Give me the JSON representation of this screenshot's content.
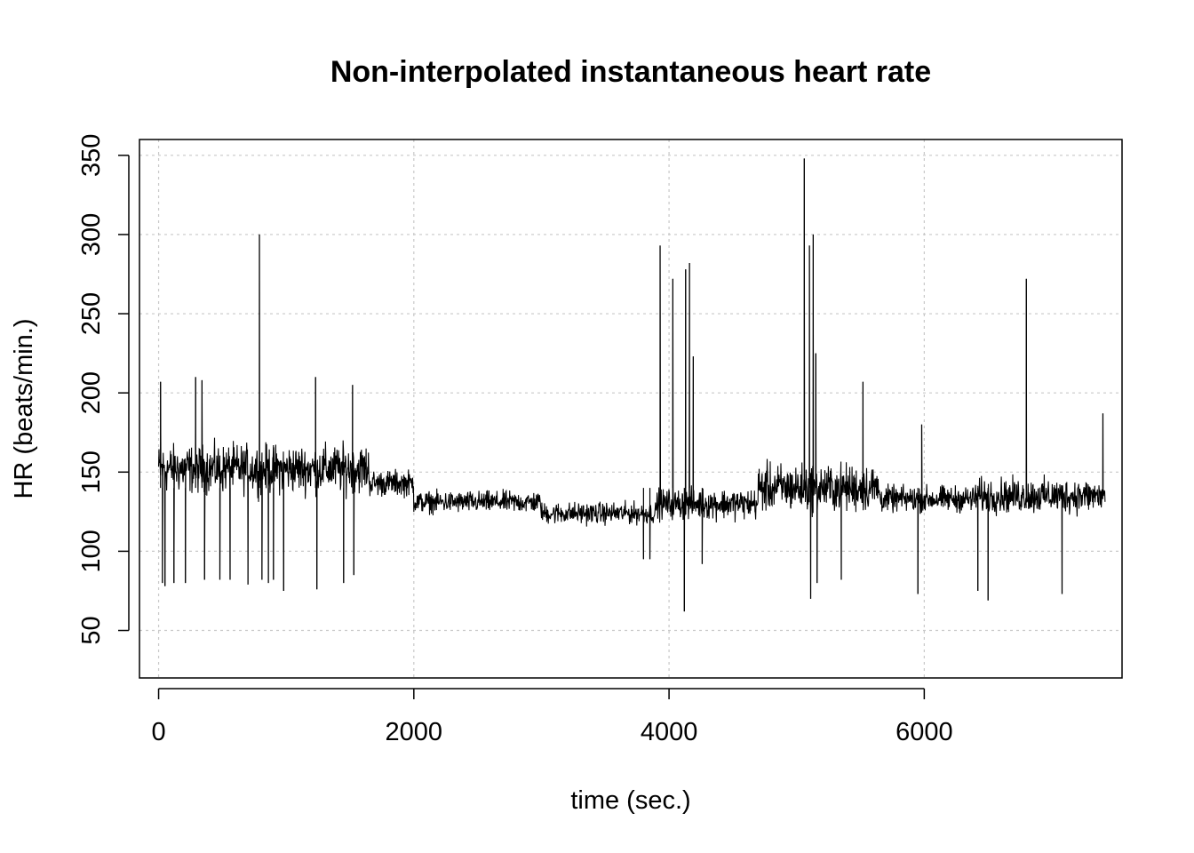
{
  "chart_data": {
    "type": "line",
    "title": "Non-interpolated instantaneous heart rate",
    "xlabel": "time (sec.)",
    "ylabel": "HR (beats/min.)",
    "xlim": [
      -150,
      7550
    ],
    "ylim": [
      20,
      360
    ],
    "x_ticks": [
      0,
      2000,
      4000,
      6000
    ],
    "y_ticks": [
      50,
      100,
      150,
      200,
      250,
      300,
      350
    ],
    "x_tick_labels": [
      "0",
      "2000",
      "4000",
      "6000"
    ],
    "y_tick_labels": [
      "50",
      "100",
      "150",
      "200",
      "250",
      "300",
      "350"
    ],
    "grid": true,
    "line_color": "#000000",
    "series": [
      {
        "segments": [
          {
            "x": [
              0,
              1650
            ],
            "mean": 152,
            "spread": 22
          },
          {
            "x": [
              1650,
              2000
            ],
            "mean": 143,
            "spread": 12
          },
          {
            "x": [
              2000,
              3000
            ],
            "mean": 131,
            "spread": 10
          },
          {
            "x": [
              3000,
              3900
            ],
            "mean": 124,
            "spread": 10
          },
          {
            "x": [
              3900,
              4700
            ],
            "mean": 130,
            "spread": 14
          },
          {
            "x": [
              4700,
              5650
            ],
            "mean": 140,
            "spread": 22
          },
          {
            "x": [
              5650,
              6400
            ],
            "mean": 133,
            "spread": 12
          },
          {
            "x": [
              6400,
              7420
            ],
            "mean": 135,
            "spread": 16
          }
        ],
        "spikes": [
          {
            "x": 15,
            "y": 207
          },
          {
            "x": 30,
            "y": 80
          },
          {
            "x": 50,
            "y": 78
          },
          {
            "x": 120,
            "y": 80
          },
          {
            "x": 210,
            "y": 80
          },
          {
            "x": 290,
            "y": 210
          },
          {
            "x": 340,
            "y": 208
          },
          {
            "x": 360,
            "y": 82
          },
          {
            "x": 480,
            "y": 82
          },
          {
            "x": 560,
            "y": 82
          },
          {
            "x": 700,
            "y": 79
          },
          {
            "x": 790,
            "y": 300
          },
          {
            "x": 810,
            "y": 82
          },
          {
            "x": 860,
            "y": 80
          },
          {
            "x": 900,
            "y": 82
          },
          {
            "x": 980,
            "y": 75
          },
          {
            "x": 1230,
            "y": 210
          },
          {
            "x": 1240,
            "y": 76
          },
          {
            "x": 1450,
            "y": 80
          },
          {
            "x": 1520,
            "y": 205
          },
          {
            "x": 1530,
            "y": 85
          },
          {
            "x": 3800,
            "y": 95
          },
          {
            "x": 3850,
            "y": 95
          },
          {
            "x": 3930,
            "y": 293
          },
          {
            "x": 4030,
            "y": 272
          },
          {
            "x": 4120,
            "y": 62
          },
          {
            "x": 4130,
            "y": 278
          },
          {
            "x": 4160,
            "y": 282
          },
          {
            "x": 4190,
            "y": 223
          },
          {
            "x": 4260,
            "y": 92
          },
          {
            "x": 5060,
            "y": 348
          },
          {
            "x": 5100,
            "y": 293
          },
          {
            "x": 5110,
            "y": 70
          },
          {
            "x": 5130,
            "y": 300
          },
          {
            "x": 5150,
            "y": 225
          },
          {
            "x": 5160,
            "y": 80
          },
          {
            "x": 5350,
            "y": 82
          },
          {
            "x": 5520,
            "y": 207
          },
          {
            "x": 5950,
            "y": 73
          },
          {
            "x": 5980,
            "y": 180
          },
          {
            "x": 6420,
            "y": 75
          },
          {
            "x": 6500,
            "y": 69
          },
          {
            "x": 6800,
            "y": 272
          },
          {
            "x": 7080,
            "y": 73
          },
          {
            "x": 7400,
            "y": 187
          }
        ]
      }
    ]
  }
}
